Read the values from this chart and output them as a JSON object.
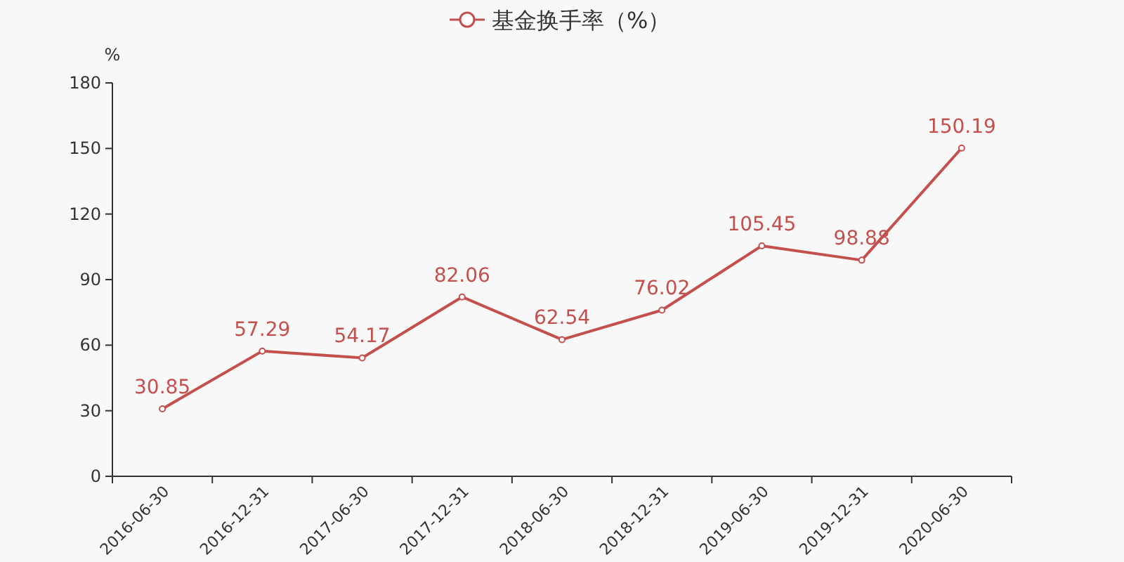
{
  "chart_data": {
    "type": "line",
    "ylabel": "%",
    "categories": [
      "2016-06-30",
      "2016-12-31",
      "2017-06-30",
      "2017-12-31",
      "2018-06-30",
      "2018-12-31",
      "2019-06-30",
      "2019-12-31",
      "2020-06-30"
    ],
    "series": [
      {
        "name": "基金换手率（%）",
        "color": "#c4504d",
        "values": [
          30.85,
          57.29,
          54.17,
          82.06,
          62.54,
          76.02,
          105.45,
          98.88,
          150.19
        ]
      }
    ],
    "ylim": [
      0,
      180
    ],
    "yticks": [
      0,
      30,
      60,
      90,
      120,
      150,
      180
    ],
    "data_labels": true,
    "legend": "top",
    "marker": "circle",
    "grid": false
  }
}
